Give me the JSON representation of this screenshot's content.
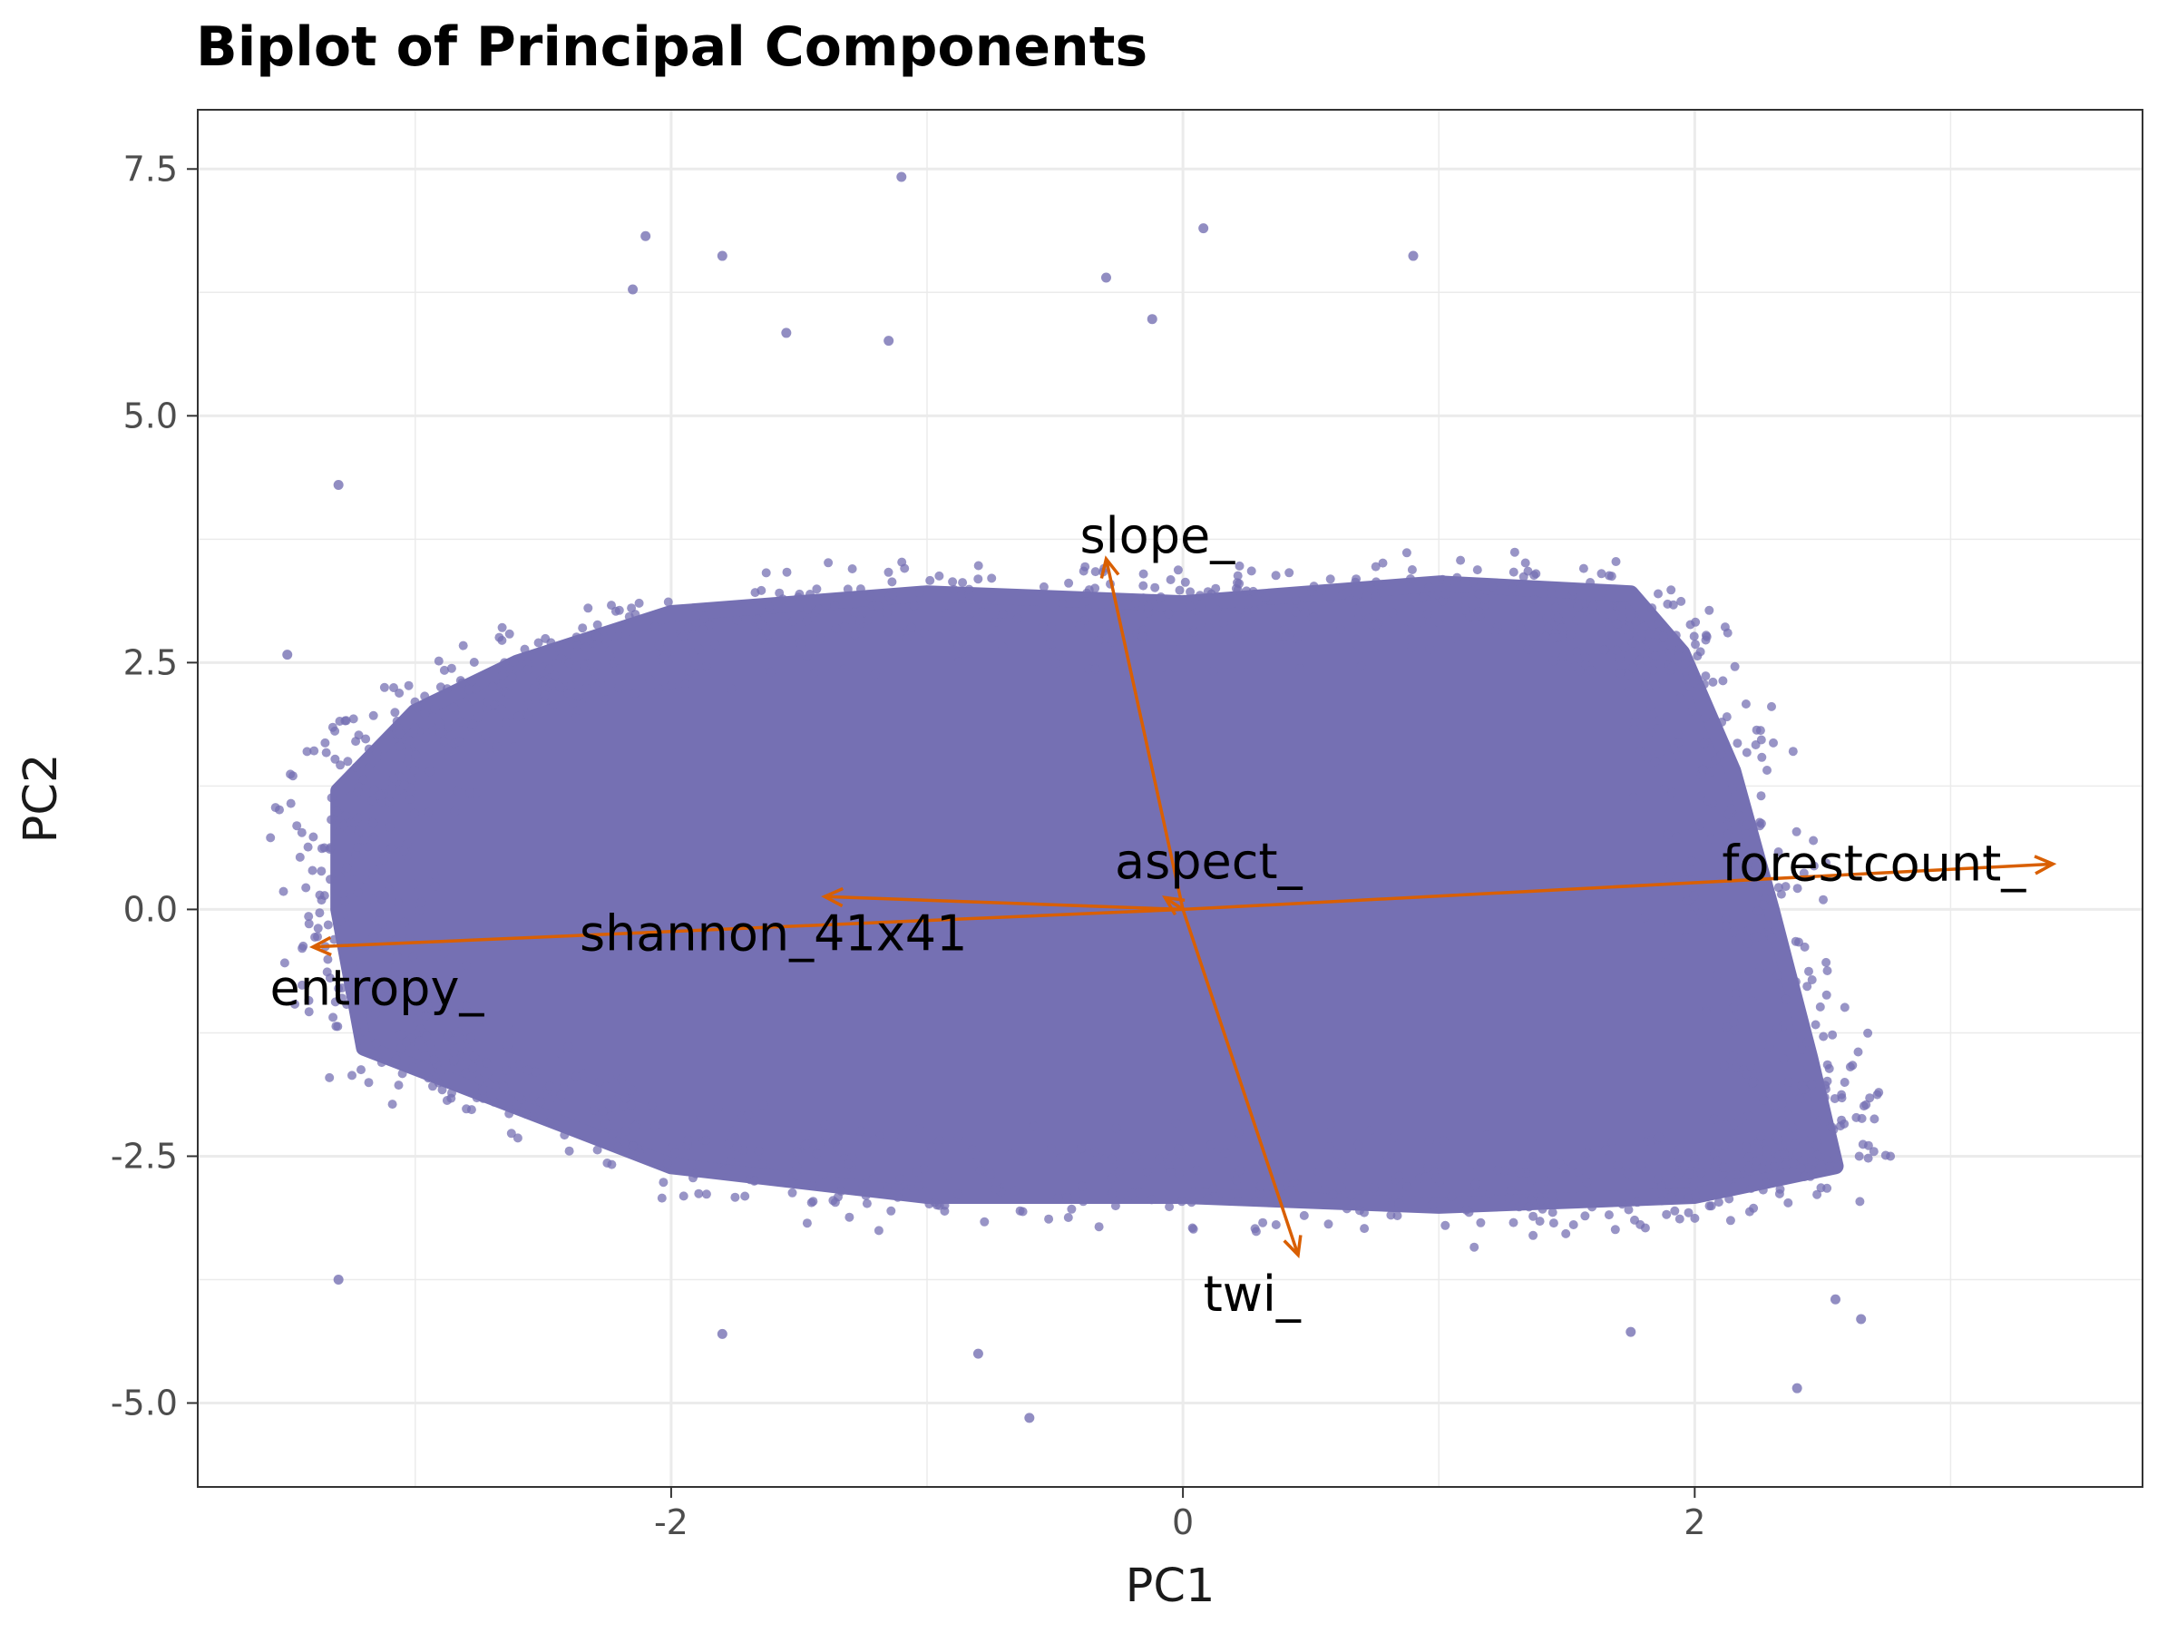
{
  "chart_data": {
    "type": "scatter",
    "title": "Biplot of Principal Components",
    "xlabel": "PC1",
    "ylabel": "PC2",
    "xlim": [
      -3.85,
      3.75
    ],
    "ylim": [
      -5.85,
      8.1
    ],
    "x_ticks": [
      -2,
      0,
      2
    ],
    "x_tick_labels": [
      "-2",
      "0",
      "2"
    ],
    "y_ticks": [
      -5,
      -2.5,
      0,
      2.5,
      5,
      7.5
    ],
    "y_tick_labels": [
      "-5.0",
      "-2.5",
      "0.0",
      "2.5",
      "5.0",
      "7.5"
    ],
    "grid": true,
    "point_color": "#7570b3",
    "arrow_color": "#d95f02",
    "scores_cloud": {
      "description_of_shape_points": [
        [
          -2.6,
          2.5
        ],
        [
          -2.0,
          3.0
        ],
        [
          -1.0,
          3.2
        ],
        [
          0.0,
          3.1
        ],
        [
          1.0,
          3.3
        ],
        [
          1.75,
          3.2
        ],
        [
          1.95,
          2.6
        ],
        [
          2.15,
          1.4
        ],
        [
          2.3,
          0.0
        ],
        [
          2.45,
          -1.5
        ],
        [
          2.55,
          -2.6
        ],
        [
          2.0,
          -2.9
        ],
        [
          1.0,
          -3.0
        ],
        [
          0.0,
          -2.9
        ],
        [
          -1.0,
          -2.9
        ],
        [
          -2.0,
          -2.6
        ],
        [
          -2.7,
          -1.9
        ],
        [
          -3.2,
          -1.4
        ],
        [
          -3.3,
          0.0
        ],
        [
          -3.3,
          1.2
        ],
        [
          -3.0,
          2.0
        ]
      ],
      "outliers": [
        [
          -1.1,
          7.42
        ],
        [
          -2.1,
          6.82
        ],
        [
          0.08,
          6.9
        ],
        [
          0.9,
          6.62
        ],
        [
          -1.8,
          6.62
        ],
        [
          -0.3,
          6.4
        ],
        [
          -2.15,
          6.28
        ],
        [
          -0.12,
          5.98
        ],
        [
          -1.55,
          5.84
        ],
        [
          -1.15,
          5.76
        ],
        [
          -3.3,
          4.3
        ],
        [
          -3.5,
          2.58
        ],
        [
          2.4,
          -4.85
        ],
        [
          2.65,
          -4.15
        ],
        [
          -0.6,
          -5.15
        ],
        [
          -0.8,
          -4.5
        ],
        [
          -1.8,
          -4.3
        ],
        [
          1.75,
          -4.28
        ],
        [
          2.55,
          -3.95
        ],
        [
          -3.3,
          -3.75
        ]
      ]
    },
    "loadings": [
      {
        "label": "forestcount_",
        "x": 3.4,
        "y": 0.46,
        "label_x": 2.7,
        "label_y": 0.46
      },
      {
        "label": "entropy_",
        "x": -3.4,
        "y": -0.38,
        "label_x": -3.15,
        "label_y": -0.8
      },
      {
        "label": "shannon_41x41",
        "x": -1.4,
        "y": 0.13,
        "label_x": -1.6,
        "label_y": -0.25
      },
      {
        "label": "slope_",
        "x": -0.3,
        "y": 3.55,
        "label_x": -0.1,
        "label_y": 3.78
      },
      {
        "label": "twi_",
        "x": 0.45,
        "y": -3.5,
        "label_x": 0.27,
        "label_y": -3.9
      },
      {
        "label": "aspect_",
        "x": -0.07,
        "y": 0.12,
        "label_x": 0.1,
        "label_y": 0.48
      }
    ]
  }
}
